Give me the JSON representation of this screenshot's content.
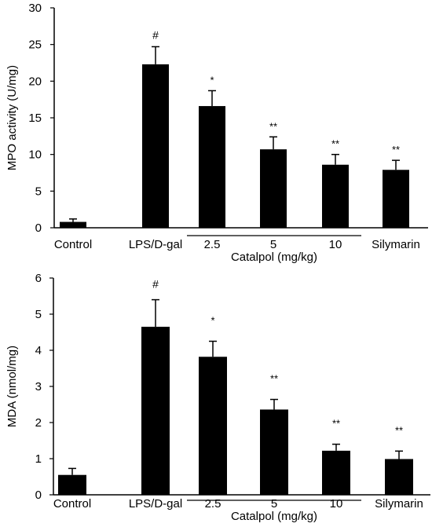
{
  "chart_data": [
    {
      "type": "bar",
      "ylabel": "MPO activity (U/mg)",
      "ylim": [
        0,
        30
      ],
      "yticks": [
        "0",
        "5",
        "10",
        "15",
        "20",
        "25",
        "30"
      ],
      "categories": [
        "Control",
        "LPS/D-gal",
        "2.5",
        "5",
        "10",
        "Silymarin"
      ],
      "group_label": "Catalpol (mg/kg)",
      "values": [
        0.8,
        22.3,
        16.6,
        10.7,
        8.6,
        7.9
      ],
      "errors": [
        0.4,
        2.4,
        2.1,
        1.7,
        1.4,
        1.3
      ],
      "annotations": [
        "",
        "#",
        "*",
        "**",
        "**",
        "**"
      ],
      "grid": false,
      "bar_color": "#000000"
    },
    {
      "type": "bar",
      "ylabel": "MDA (nmol/mg)",
      "ylim": [
        0,
        6
      ],
      "yticks": [
        "0",
        "1",
        "2",
        "3",
        "4",
        "5",
        "6"
      ],
      "categories": [
        "Control",
        "LPS/D-gal",
        "2.5",
        "5",
        "10",
        "Silymarin"
      ],
      "group_label": "Catalpol (mg/kg)",
      "values": [
        0.55,
        4.65,
        3.82,
        2.36,
        1.22,
        0.99
      ],
      "errors": [
        0.18,
        0.75,
        0.43,
        0.28,
        0.18,
        0.22
      ],
      "annotations": [
        "",
        "#",
        "*",
        "**",
        "**",
        "**"
      ],
      "grid": false,
      "bar_color": "#000000"
    }
  ]
}
